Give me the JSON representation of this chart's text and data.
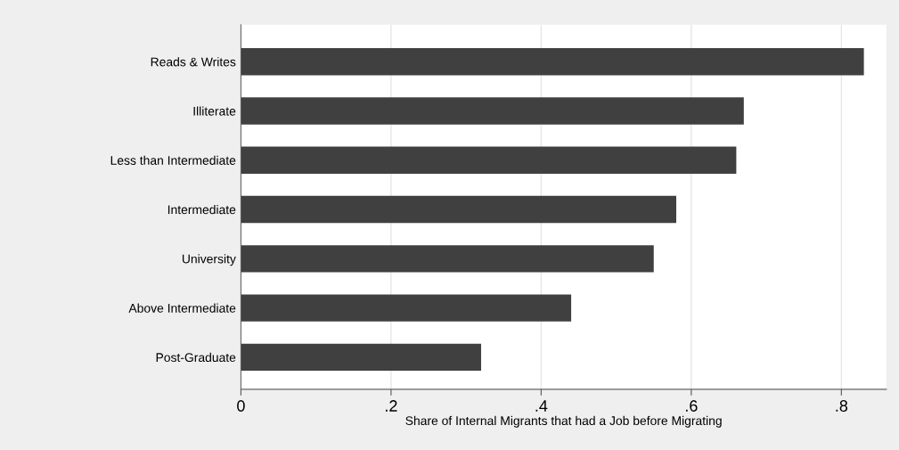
{
  "chart_data": {
    "type": "bar",
    "orientation": "horizontal",
    "categories": [
      "Reads & Writes",
      "Illiterate",
      "Less than Intermediate",
      "Intermediate",
      "University",
      "Above Intermediate",
      "Post-Graduate"
    ],
    "values": [
      0.83,
      0.67,
      0.66,
      0.58,
      0.55,
      0.44,
      0.32
    ],
    "color": "#404040",
    "xlabel": "Share of Internal Migrants that had a Job before Migrating",
    "xlim": [
      0,
      0.86
    ],
    "xticks": [
      {
        "value": 0,
        "label": "0"
      },
      {
        "value": 0.2,
        "label": ".2"
      },
      {
        "value": 0.4,
        "label": ".4"
      },
      {
        "value": 0.6,
        "label": ".6"
      },
      {
        "value": 0.8,
        "label": ".8"
      }
    ],
    "grid": "x"
  }
}
